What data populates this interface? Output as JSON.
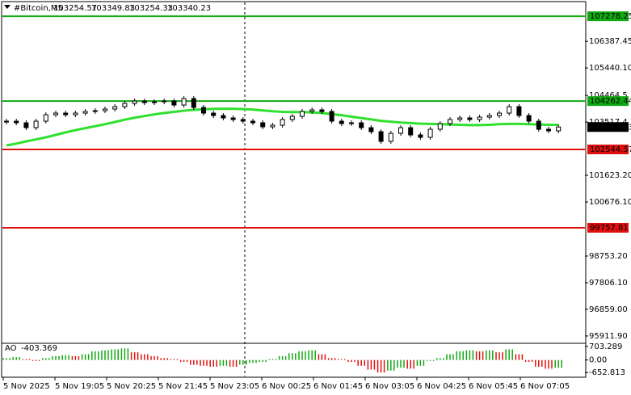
{
  "chart_data": {
    "type": "candlestick",
    "title": "#Bitcoin,M5",
    "header_quote": [
      103254.57,
      103349.83,
      103254.33,
      103340.23
    ],
    "closes": [
      103548,
      103491,
      103318,
      103548,
      103778,
      103835,
      103778,
      103835,
      103893,
      103922,
      103979,
      104065,
      104180,
      104266,
      104209,
      104237,
      104266,
      104122,
      104352,
      104036,
      103835,
      103749,
      103663,
      103606,
      103548,
      103491,
      103347,
      103404,
      103606,
      103720,
      103893,
      103950,
      103893,
      103548,
      103462,
      103491,
      103318,
      103175,
      102830,
      103117,
      103318,
      103060,
      102974,
      103261,
      103462,
      103606,
      103663,
      103606,
      103692,
      103749,
      103835,
      104065,
      103749,
      103548,
      103261,
      103204,
      103340.23
    ],
    "ma": {
      "color": "#2fe02f",
      "values": [
        102686,
        102750,
        102830,
        102900,
        102974,
        103060,
        103150,
        103230,
        103300,
        103370,
        103440,
        103520,
        103600,
        103670,
        103730,
        103790,
        103840,
        103880,
        103920,
        103950,
        103970,
        103985,
        103990,
        103990,
        103980,
        103960,
        103930,
        103900,
        103880,
        103870,
        103870,
        103860,
        103840,
        103800,
        103760,
        103710,
        103660,
        103610,
        103560,
        103530,
        103500,
        103480,
        103460,
        103450,
        103440,
        103430,
        103420,
        103410,
        103410,
        103420,
        103440,
        103450,
        103450,
        103440,
        103430,
        103420,
        103420
      ]
    },
    "ylim": [
      95680,
      107770
    ],
    "yticks": [
      106387.45,
      {
        "value": 105440.1,
        "label": "105440.10"
      },
      104464.5,
      103517.4,
      {
        "value": 101623.2,
        "label": "101623.20"
      },
      {
        "value": 100676.1,
        "label": "100676.10"
      },
      {
        "value": 98753.2,
        "label": "98753.20"
      },
      {
        "value": 97806.1,
        "label": "97806.10"
      },
      {
        "value": 96859.0,
        "label": "96859.00"
      },
      {
        "value": 95911.9,
        "label": "95911.90"
      }
    ],
    "levels": [
      {
        "value": 107278.25,
        "color": "#12a812"
      },
      {
        "value": 104262.44,
        "color": "#12a812"
      },
      {
        "value": 102544.57,
        "color": "#e01010"
      },
      {
        "value": 99757.81,
        "color": "#e01010"
      }
    ],
    "x_labels": [
      "5 Nov 2025",
      "5 Nov 19:05",
      "5 Nov 20:25",
      "5 Nov 21:45",
      "5 Nov 23:05",
      "6 Nov 00:25",
      "6 Nov 01:45",
      "6 Nov 03:05",
      "6 Nov 04:25",
      "6 Nov 05:45",
      "6 Nov 07:05"
    ],
    "indicator": {
      "name": "AO",
      "up_color": "#12a812",
      "down_color": "#e01010",
      "values": [
        100,
        150,
        50,
        -50,
        100,
        200,
        250,
        200,
        300,
        450,
        500,
        550,
        600,
        400,
        300,
        200,
        100,
        50,
        -100,
        -250,
        -300,
        -350,
        -300,
        -350,
        -250,
        -150,
        -100,
        50,
        200,
        350,
        450,
        500,
        300,
        100,
        50,
        -100,
        -300,
        -500,
        -650,
        -550,
        -400,
        -450,
        -300,
        -50,
        100,
        300,
        450,
        500,
        450,
        500,
        400,
        550,
        300,
        -100,
        -350,
        -450,
        -403.369
      ],
      "ylim": [
        -852,
        823
      ],
      "yticks": [
        703.289,
        {
          "value": 0,
          "label": "0.00"
        },
        -652.813
      ]
    }
  }
}
